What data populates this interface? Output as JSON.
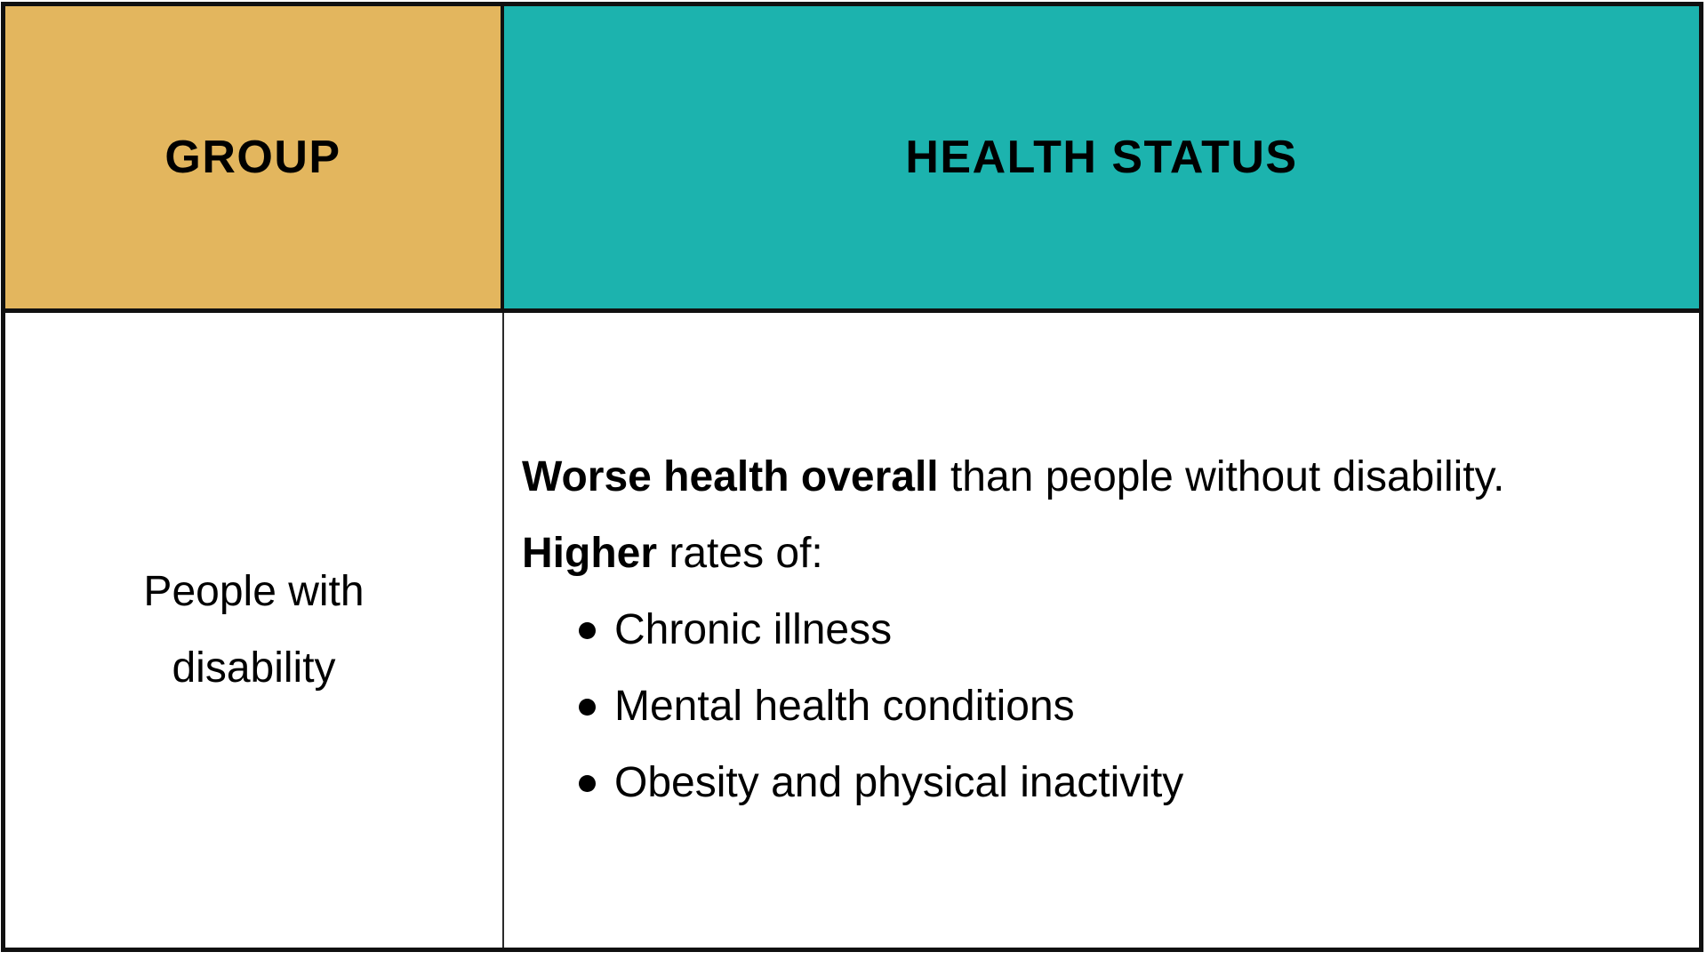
{
  "colors": {
    "group_header_bg": "#e3b65e",
    "health_header_bg": "#1cb3ae",
    "border": "#101010",
    "text": "#000000",
    "body_bg": "#ffffff"
  },
  "table": {
    "headers": [
      {
        "label": "GROUP"
      },
      {
        "label": "HEALTH STATUS"
      }
    ],
    "row": {
      "group": "People with disability",
      "health_status": {
        "p1_bold": "Worse health overall",
        "p1_rest": " than people without disability.",
        "p2_bold": "Higher",
        "p2_rest": " rates of:",
        "bullets": [
          "Chronic illness",
          "Mental health conditions",
          "Obesity and physical inactivity"
        ]
      }
    }
  },
  "chart_data": {
    "type": "table",
    "columns": [
      "GROUP",
      "HEALTH STATUS"
    ],
    "rows": [
      [
        "People with disability",
        "Worse health overall than people without disability. Higher rates of: Chronic illness; Mental health conditions; Obesity and physical inactivity"
      ]
    ],
    "title": "",
    "legend_position": "none",
    "grid": true
  }
}
